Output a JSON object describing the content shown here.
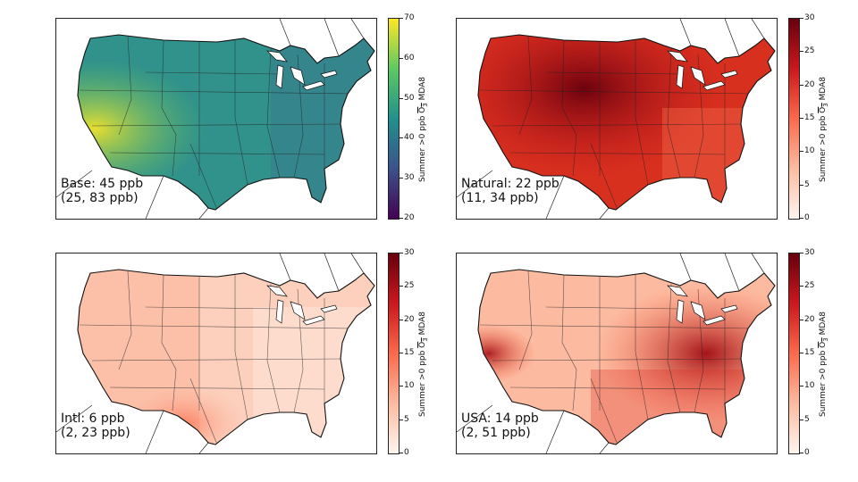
{
  "colorbar_label": {
    "prefix": "Summer >0 ppb ",
    "o3": "O",
    "sub": "3",
    "suffix": " MDA8"
  },
  "panels": [
    {
      "id": "base",
      "label_line1": "Base: 45 ppb",
      "label_line2": "(25, 83 ppb)",
      "colormap": "viridis",
      "ticks": [
        "20",
        "30",
        "40",
        "50",
        "60",
        "70"
      ],
      "range": [
        20,
        70
      ]
    },
    {
      "id": "natural",
      "label_line1": "Natural: 22 ppb",
      "label_line2": "(11, 34 ppb)",
      "colormap": "reds",
      "ticks": [
        "0",
        "5",
        "10",
        "15",
        "20",
        "25",
        "30"
      ],
      "range": [
        0,
        30
      ]
    },
    {
      "id": "intl",
      "label_line1": "Intl: 6 ppb",
      "label_line2": "(2, 23 ppb)",
      "colormap": "reds",
      "ticks": [
        "0",
        "5",
        "10",
        "15",
        "20",
        "25",
        "30"
      ],
      "range": [
        0,
        30
      ]
    },
    {
      "id": "usa",
      "label_line1": "USA: 14 ppb",
      "label_line2": "(2, 51 ppb)",
      "colormap": "reds",
      "ticks": [
        "0",
        "5",
        "10",
        "15",
        "20",
        "25",
        "30"
      ],
      "range": [
        0,
        30
      ]
    }
  ],
  "colors": {
    "viridis": [
      "#440154",
      "#3b528b",
      "#21918c",
      "#5ec962",
      "#fde725"
    ],
    "reds": [
      "#fff5f0",
      "#fcbba1",
      "#fb6a4a",
      "#cb181d",
      "#67000d"
    ]
  }
}
